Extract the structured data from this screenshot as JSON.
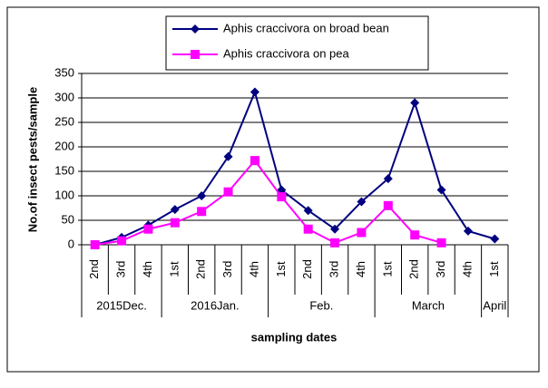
{
  "chart_data": {
    "type": "line",
    "y_axis_label": "No.of insect pests/sample",
    "x_axis_label": "sampling dates",
    "category_groups": [
      {
        "name": "2015Dec.",
        "categories": [
          "2nd",
          "3rd",
          "4th"
        ]
      },
      {
        "name": "2016Jan.",
        "categories": [
          "1st",
          "2nd",
          "3rd",
          "4th"
        ]
      },
      {
        "name": "Feb.",
        "categories": [
          "1st",
          "2nd",
          "3rd",
          "4th"
        ]
      },
      {
        "name": "March",
        "categories": [
          "1st",
          "2nd",
          "3rd",
          "4th"
        ]
      },
      {
        "name": "April",
        "categories": [
          "1st"
        ]
      }
    ],
    "series": [
      {
        "name": "Aphis craccivora on broad bean",
        "color": "#000080",
        "marker": "diamond",
        "values": [
          0,
          15,
          40,
          72,
          100,
          180,
          312,
          112,
          70,
          32,
          88,
          135,
          290,
          112,
          28,
          12
        ]
      },
      {
        "name": "Aphis craccivora on pea",
        "color": "#ff00ff",
        "marker": "square",
        "values": [
          0,
          8,
          32,
          45,
          68,
          108,
          172,
          98,
          32,
          4,
          25,
          80,
          20,
          4,
          null,
          null
        ]
      }
    ],
    "ylim": [
      0,
      350
    ],
    "yticks": [
      0,
      50,
      100,
      150,
      200,
      250,
      300,
      350
    ],
    "grid": true
  }
}
